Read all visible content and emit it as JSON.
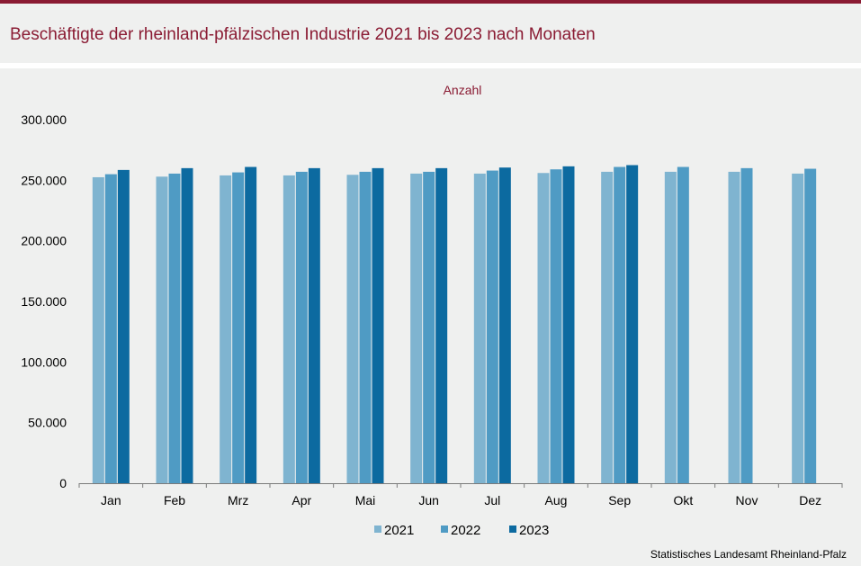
{
  "header": {
    "title": "Beschäftigte der rheinland-pfälzischen Industrie 2021 bis 2023 nach Monaten"
  },
  "source": "Statistisches Landesamt  Rheinland-Pfalz",
  "colors": {
    "accent": "#8a1b33",
    "series_2021": "#7fb4d0",
    "series_2022": "#4f9bc4",
    "series_2023": "#0c6aa0"
  },
  "chart_data": {
    "type": "bar",
    "ylabel": "Anzahl",
    "ylim": [
      0,
      300000
    ],
    "yticks": [
      0,
      50000,
      100000,
      150000,
      200000,
      250000,
      300000
    ],
    "ytick_labels": [
      "0",
      "50.000",
      "100.000",
      "150.000",
      "200.000",
      "250.000",
      "300.000"
    ],
    "categories": [
      "Jan",
      "Feb",
      "Mrz",
      "Apr",
      "Mai",
      "Jun",
      "Jul",
      "Aug",
      "Sep",
      "Okt",
      "Nov",
      "Dez"
    ],
    "legend_position": "bottom",
    "grid": false,
    "series": [
      {
        "name": "2021",
        "values": [
          252500,
          253000,
          254000,
          254000,
          254500,
          255500,
          255500,
          256000,
          257000,
          257000,
          257000,
          255500
        ]
      },
      {
        "name": "2022",
        "values": [
          255000,
          255500,
          256500,
          257000,
          257000,
          257000,
          258000,
          259000,
          261000,
          261000,
          260000,
          259500
        ]
      },
      {
        "name": "2023",
        "values": [
          258500,
          260000,
          261000,
          260000,
          260000,
          260000,
          260500,
          261500,
          262500,
          null,
          null,
          null
        ]
      }
    ]
  }
}
